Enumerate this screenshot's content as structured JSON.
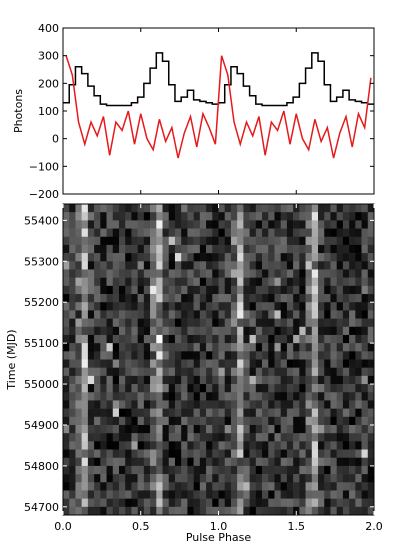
{
  "chart_data": [
    {
      "type": "line",
      "ylabel": "Photons",
      "xlim": [
        0.0,
        2.0
      ],
      "ylim": [
        -200,
        400
      ],
      "yticks": [
        -200,
        -100,
        0,
        100,
        200,
        300,
        400
      ],
      "ytick_labels": [
        "−200",
        "−100",
        "0",
        "100",
        "200",
        "300",
        "400"
      ],
      "bins": 50,
      "series": [
        {
          "style": "step",
          "color": "#000000",
          "values": [
            130,
            195,
            260,
            235,
            190,
            155,
            125,
            120,
            120,
            120,
            120,
            130,
            150,
            200,
            255,
            310,
            280,
            195,
            135,
            150,
            175,
            140,
            135,
            130,
            125,
            130,
            195,
            260,
            235,
            190,
            155,
            125,
            120,
            120,
            120,
            120,
            130,
            150,
            200,
            255,
            310,
            280,
            195,
            135,
            150,
            175,
            140,
            135,
            130,
            125
          ]
        },
        {
          "style": "line",
          "color": "#e41a1c",
          "values": [
            300,
            230,
            60,
            -20,
            60,
            10,
            80,
            -60,
            60,
            30,
            100,
            -20,
            90,
            0,
            -40,
            70,
            -10,
            40,
            -70,
            20,
            80,
            -30,
            90,
            40,
            -20,
            300,
            230,
            60,
            -20,
            60,
            10,
            80,
            -60,
            60,
            30,
            100,
            -20,
            90,
            0,
            -40,
            70,
            -10,
            40,
            -70,
            20,
            80,
            -30,
            90,
            40,
            220
          ]
        }
      ]
    },
    {
      "type": "heatmap",
      "xlabel": "Pulse Phase",
      "ylabel": "Time (MJD)",
      "xlim": [
        0.0,
        2.0
      ],
      "ylim": [
        54680,
        55440
      ],
      "xticks": [
        0.0,
        0.5,
        1.0,
        1.5,
        2.0
      ],
      "xtick_labels": [
        "0.0",
        "0.5",
        "1.0",
        "1.5",
        "2.0"
      ],
      "yticks": [
        54700,
        54800,
        54900,
        55000,
        55100,
        55200,
        55300,
        55400
      ],
      "ytick_labels": [
        "54700",
        "54800",
        "54900",
        "55000",
        "55100",
        "55200",
        "55300",
        "55400"
      ],
      "colormap": "gray",
      "phase_bins": 50,
      "time_bins": 38,
      "peak_phases": [
        0.13,
        0.61,
        1.13,
        1.61
      ]
    }
  ]
}
